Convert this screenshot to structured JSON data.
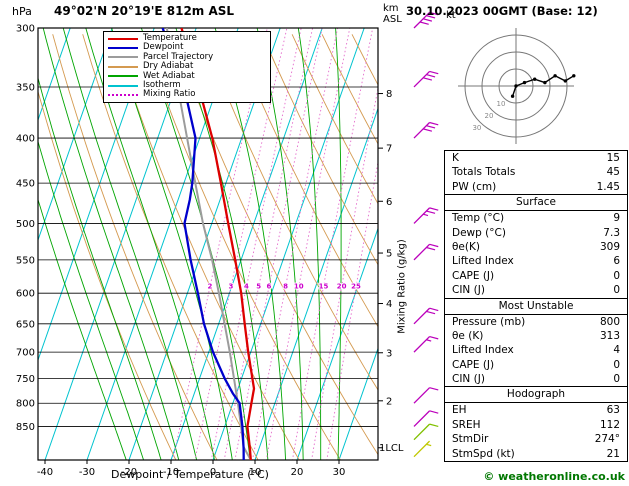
{
  "header": {
    "pressure_unit": "hPa",
    "title": "49°02'N 20°19'E 812m ASL",
    "altitude_unit_line1": "km",
    "altitude_unit_line2": "ASL",
    "datetime": "30.10.2023 00GMT (Base: 12)"
  },
  "legend": {
    "items": [
      {
        "label": "Temperature",
        "color": "#dd0000",
        "style": "solid"
      },
      {
        "label": "Dewpoint",
        "color": "#0000cc",
        "style": "solid"
      },
      {
        "label": "Parcel Trajectory",
        "color": "#9c9c9c",
        "style": "solid"
      },
      {
        "label": "Dry Adiabat",
        "color": "#d49a50",
        "style": "solid"
      },
      {
        "label": "Wet Adiabat",
        "color": "#00a500",
        "style": "solid"
      },
      {
        "label": "Isotherm",
        "color": "#00c3cf",
        "style": "solid"
      },
      {
        "label": "Mixing Ratio",
        "color": "#cc00cc",
        "style": "dotted"
      }
    ]
  },
  "axes": {
    "x_label": "Dewpoint / Temperature (°C)",
    "mixing_ratio_label": "Mixing Ratio (g/kg)",
    "lcl_label": "1LCL",
    "pressure_ticks": [
      300,
      350,
      400,
      450,
      500,
      550,
      600,
      650,
      700,
      750,
      800,
      850
    ],
    "temp_ticks": [
      -40,
      -30,
      -20,
      -10,
      0,
      10,
      20,
      30
    ],
    "km_ticks": [
      8,
      7,
      6,
      5,
      4,
      3,
      2
    ]
  },
  "chart_data": {
    "type": "skewt-log-p sounding",
    "title": "49°02'N 20°19'E 812m ASL",
    "datetime": "30.10.2023 00GMT (Base: 12)",
    "pressure_range_hpa": [
      300,
      928
    ],
    "temp_axis_range_c": [
      -40,
      30
    ],
    "mixing_ratio_gkg": [
      2,
      3,
      4,
      5,
      6,
      8,
      10,
      15,
      20,
      25
    ],
    "colors": {
      "isotherm": "#00c3cf",
      "dry_adiabat": "#d49a50",
      "wet_adiabat": "#00a500",
      "mixing_ratio": "#e46ccc",
      "mixing_ratio_label": "#cc00cc",
      "grid": "#000000"
    },
    "series": {
      "temperature": {
        "color": "#dd0000",
        "points": [
          [
            928,
            9.0
          ],
          [
            900,
            7.8
          ],
          [
            850,
            5.4
          ],
          [
            800,
            4.4
          ],
          [
            770,
            3.8
          ],
          [
            750,
            2.6
          ],
          [
            700,
            -0.6
          ],
          [
            650,
            -3.8
          ],
          [
            600,
            -7.2
          ],
          [
            550,
            -11.4
          ],
          [
            500,
            -16.1
          ],
          [
            450,
            -21.2
          ],
          [
            400,
            -27.0
          ],
          [
            350,
            -34.5
          ],
          [
            300,
            -43.5
          ]
        ]
      },
      "dewpoint": {
        "color": "#0000cc",
        "points": [
          [
            928,
            7.3
          ],
          [
            900,
            6.3
          ],
          [
            850,
            4.2
          ],
          [
            800,
            1.6
          ],
          [
            780,
            -0.8
          ],
          [
            750,
            -4.0
          ],
          [
            700,
            -9.0
          ],
          [
            650,
            -13.5
          ],
          [
            600,
            -17.5
          ],
          [
            550,
            -22.0
          ],
          [
            500,
            -26.5
          ],
          [
            470,
            -27.2
          ],
          [
            450,
            -28.0
          ],
          [
            400,
            -31.0
          ],
          [
            350,
            -38.0
          ],
          [
            300,
            -48.0
          ]
        ]
      },
      "parcel": {
        "color": "#9c9c9c",
        "points": [
          [
            928,
            9.0
          ],
          [
            897,
            6.2
          ],
          [
            850,
            3.9
          ],
          [
            800,
            1.2
          ],
          [
            750,
            -1.8
          ],
          [
            700,
            -5.0
          ],
          [
            650,
            -8.6
          ],
          [
            600,
            -12.5
          ],
          [
            550,
            -16.9
          ],
          [
            500,
            -22.1
          ],
          [
            450,
            -27.3
          ],
          [
            400,
            -33.0
          ],
          [
            350,
            -39.5
          ],
          [
            300,
            -47.0
          ]
        ]
      }
    },
    "wind_barbs": [
      {
        "p": 300,
        "speed_kt": 40,
        "color": "#bb00bb"
      },
      {
        "p": 350,
        "speed_kt": 30,
        "color": "#bb00bb"
      },
      {
        "p": 400,
        "speed_kt": 30,
        "color": "#bb00bb"
      },
      {
        "p": 500,
        "speed_kt": 25,
        "color": "#bb00bb"
      },
      {
        "p": 550,
        "speed_kt": 20,
        "color": "#bb00bb"
      },
      {
        "p": 650,
        "speed_kt": 20,
        "color": "#bb00bb"
      },
      {
        "p": 700,
        "speed_kt": 15,
        "color": "#bb00bb"
      },
      {
        "p": 800,
        "speed_kt": 10,
        "color": "#bb00bb"
      },
      {
        "p": 850,
        "speed_kt": 10,
        "color": "#bb00bb"
      },
      {
        "p": 880,
        "speed_kt": 10,
        "color": "#80c000"
      },
      {
        "p": 920,
        "speed_kt": 5,
        "color": "#c0c800"
      }
    ]
  },
  "hodograph": {
    "unit": "kt",
    "rings_kt": [
      10,
      20,
      30
    ],
    "ring_labels": [
      "10",
      "20",
      "30"
    ],
    "trace_kt": [
      [
        -2,
        -6
      ],
      [
        0,
        0
      ],
      [
        5,
        2
      ],
      [
        11,
        4
      ],
      [
        17,
        2
      ],
      [
        23,
        6
      ],
      [
        29,
        3
      ],
      [
        34,
        6
      ]
    ]
  },
  "tables": {
    "sections": [
      {
        "title": "",
        "rows": [
          [
            "K",
            "15"
          ],
          [
            "Totals Totals",
            "45"
          ],
          [
            "PW (cm)",
            "1.45"
          ]
        ]
      },
      {
        "title": "Surface",
        "rows": [
          [
            "Temp (°C)",
            "9"
          ],
          [
            "Dewp (°C)",
            "7.3"
          ],
          [
            "θe(K)",
            "309"
          ],
          [
            "Lifted Index",
            "6"
          ],
          [
            "CAPE (J)",
            "0"
          ],
          [
            "CIN (J)",
            "0"
          ]
        ]
      },
      {
        "title": "Most Unstable",
        "rows": [
          [
            "Pressure (mb)",
            "800"
          ],
          [
            "θe (K)",
            "313"
          ],
          [
            "Lifted Index",
            "4"
          ],
          [
            "CAPE (J)",
            "0"
          ],
          [
            "CIN (J)",
            "0"
          ]
        ]
      },
      {
        "title": "Hodograph",
        "rows": [
          [
            "EH",
            "63"
          ],
          [
            "SREH",
            "112"
          ],
          [
            "StmDir",
            "274°"
          ],
          [
            "StmSpd (kt)",
            "21"
          ]
        ]
      }
    ]
  },
  "copyright": "© weatheronline.co.uk"
}
